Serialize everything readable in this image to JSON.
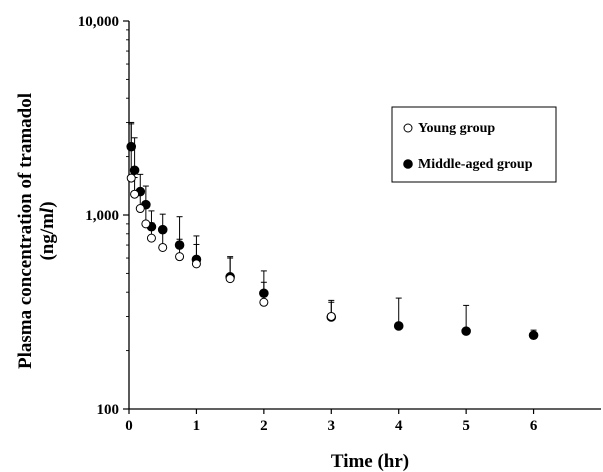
{
  "chart_data": {
    "type": "scatter",
    "xlabel": "Time (hr)",
    "ylabel_line1": "Plasma concentration of tramadol",
    "ylabel_line2_prefix": "(ng/m",
    "ylabel_line2_italic": "l",
    "ylabel_line2_suffix": ")",
    "x_scale": "linear",
    "y_scale": "log",
    "xlim": [
      0,
      7
    ],
    "ylim": [
      100,
      10000
    ],
    "x_ticks": [
      0,
      1,
      2,
      3,
      4,
      5,
      6
    ],
    "x_tick_labels": [
      "0",
      "1",
      "2",
      "3",
      "4",
      "5",
      "6"
    ],
    "y_ticks": [
      100,
      1000,
      10000
    ],
    "y_tick_labels": [
      "100",
      "1,000",
      "10,000"
    ],
    "grid": false,
    "legend_position": "top-right",
    "series": [
      {
        "name": "Young group",
        "marker": "open-circle",
        "points": [
          {
            "x": 0.033,
            "y": 1550,
            "err": 1450
          },
          {
            "x": 0.083,
            "y": 1280,
            "err": 280
          },
          {
            "x": 0.167,
            "y": 1080,
            "err": 230
          },
          {
            "x": 0.25,
            "y": 900,
            "err": 210
          },
          {
            "x": 0.333,
            "y": 760,
            "err": 150
          },
          {
            "x": 0.5,
            "y": 680,
            "err": 130
          },
          {
            "x": 0.75,
            "y": 610,
            "err": 140
          },
          {
            "x": 1,
            "y": 560,
            "err": 145
          },
          {
            "x": 1.5,
            "y": 470,
            "err": 140
          },
          {
            "x": 2,
            "y": 355,
            "err": 95
          },
          {
            "x": 3,
            "y": 300,
            "err": 55
          }
        ]
      },
      {
        "name": "Middle-aged group",
        "marker": "filled-circle",
        "points": [
          {
            "x": 0.033,
            "y": 2250,
            "err": 700
          },
          {
            "x": 0.083,
            "y": 1700,
            "err": 800
          },
          {
            "x": 0.167,
            "y": 1320,
            "err": 300
          },
          {
            "x": 0.25,
            "y": 1130,
            "err": 280
          },
          {
            "x": 0.333,
            "y": 870,
            "err": 180
          },
          {
            "x": 0.5,
            "y": 840,
            "err": 170
          },
          {
            "x": 0.75,
            "y": 700,
            "err": 280
          },
          {
            "x": 1,
            "y": 590,
            "err": 190
          },
          {
            "x": 1.5,
            "y": 480,
            "err": 120
          },
          {
            "x": 2,
            "y": 395,
            "err": 120
          },
          {
            "x": 3,
            "y": 298,
            "err": 65
          },
          {
            "x": 4,
            "y": 268,
            "err": 105
          },
          {
            "x": 5,
            "y": 252,
            "err": 90
          },
          {
            "x": 6,
            "y": 240,
            "err": 15
          }
        ]
      }
    ]
  },
  "colors": {
    "axis": "#000000",
    "filled_marker": "#000000",
    "open_marker_fill": "#ffffff",
    "error_bar": "#000000",
    "legend_border": "#000000"
  }
}
